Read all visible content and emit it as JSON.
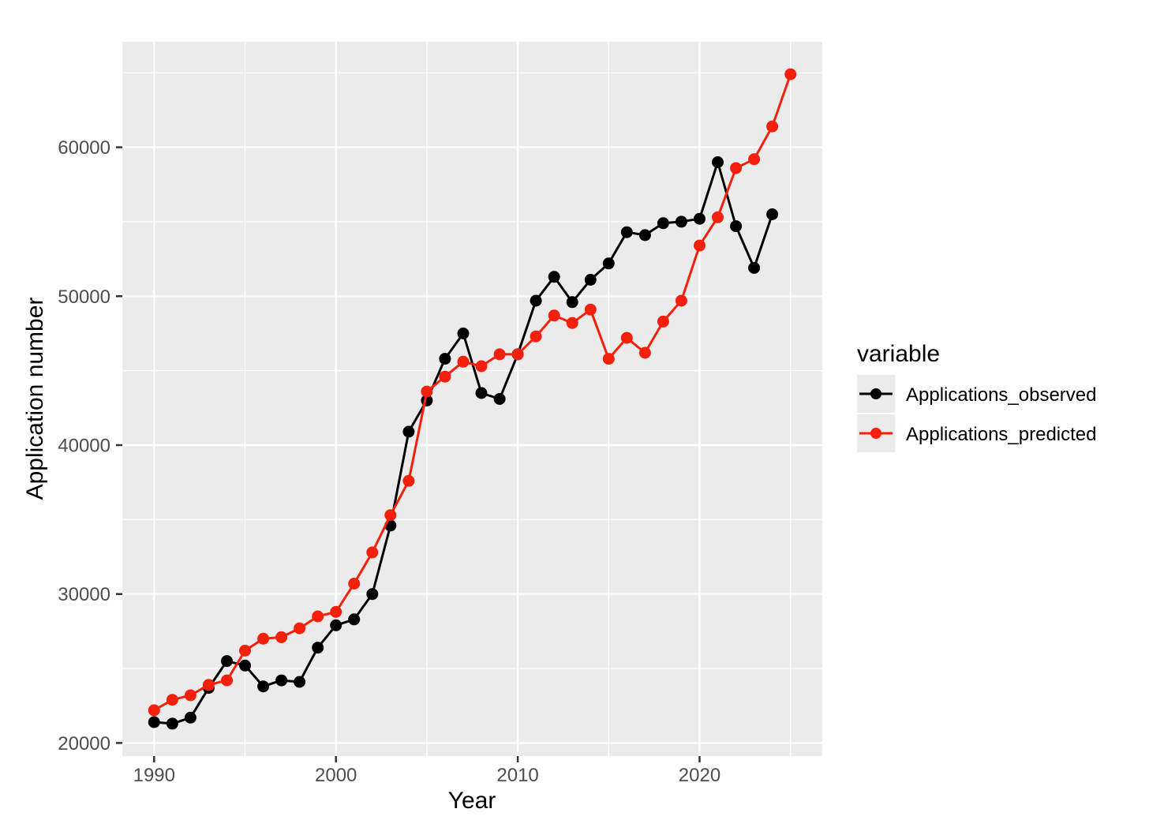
{
  "chart_data": {
    "type": "line",
    "title": "",
    "xlabel": "Year",
    "ylabel": "Application number",
    "x": [
      1990,
      1991,
      1992,
      1993,
      1994,
      1995,
      1996,
      1997,
      1998,
      1999,
      2000,
      2001,
      2002,
      2003,
      2004,
      2005,
      2006,
      2007,
      2008,
      2009,
      2010,
      2011,
      2012,
      2013,
      2014,
      2015,
      2016,
      2017,
      2018,
      2019,
      2020,
      2021,
      2022,
      2023,
      2024,
      2025
    ],
    "series": [
      {
        "name": "Applications_observed",
        "color": "#000000",
        "values": [
          21400,
          21300,
          21700,
          23700,
          25500,
          25200,
          23800,
          24200,
          24100,
          26400,
          27900,
          28300,
          30000,
          34600,
          40900,
          43000,
          45800,
          47500,
          43500,
          43100,
          46100,
          49700,
          51300,
          49600,
          51100,
          52200,
          54300,
          54100,
          54900,
          55000,
          55200,
          59000,
          54700,
          51900,
          55500,
          null
        ]
      },
      {
        "name": "Applications_predicted",
        "color": "#F4200C",
        "values": [
          22200,
          22900,
          23200,
          23900,
          24200,
          26200,
          27000,
          27100,
          27700,
          28500,
          28800,
          30700,
          32800,
          35300,
          37600,
          43600,
          44600,
          45600,
          45300,
          46100,
          46100,
          47300,
          48700,
          48200,
          49100,
          45800,
          47200,
          46200,
          48300,
          49700,
          53400,
          55300,
          58600,
          59200,
          61400,
          64900
        ]
      }
    ],
    "legend": {
      "title": "variable",
      "position": "right"
    },
    "axes": {
      "x_major_ticks": [
        1990,
        2000,
        2010,
        2020
      ],
      "x_minor": [
        1995,
        2005,
        2015,
        2025
      ],
      "y_major_ticks": [
        20000,
        30000,
        40000,
        50000,
        60000
      ],
      "y_minor": [
        25000,
        35000,
        45000,
        55000,
        65000
      ],
      "xlim": [
        1988.25,
        2026.75
      ],
      "ylim": [
        19120,
        67080
      ],
      "grid": "on"
    },
    "style": {
      "panel_bg": "#EBEBEB",
      "grid_color": "#FFFFFF",
      "tick_color": "#333333",
      "tick_label_color": "#4D4D4D",
      "axis_title_color": "#000000"
    }
  }
}
